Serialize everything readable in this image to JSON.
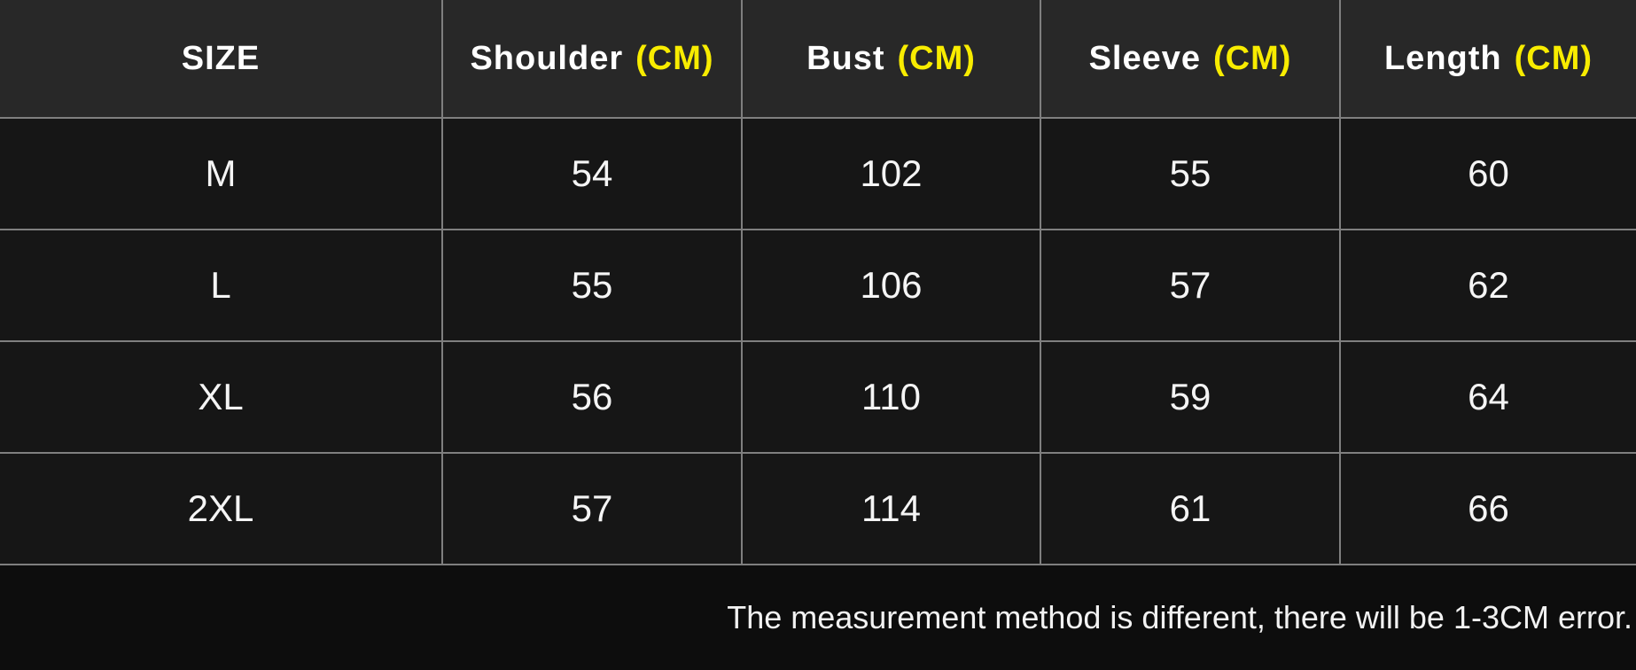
{
  "colors": {
    "header_bg": "#282828",
    "cell_bg": "#161616",
    "footer_bg": "#0d0d0d",
    "grid_line": "#7f7f7f",
    "accent_yellow": "#f8ec00",
    "header_text": "#ffffff",
    "body_text": "#f5f5f5"
  },
  "chart_data": {
    "type": "table",
    "unit_suffix": "(CM)",
    "header": [
      {
        "label": "SIZE",
        "unit": ""
      },
      {
        "label": "Shoulder",
        "unit": "(CM)"
      },
      {
        "label": "Bust",
        "unit": "(CM)"
      },
      {
        "label": "Sleeve",
        "unit": "(CM)"
      },
      {
        "label": "Length",
        "unit": "(CM)"
      }
    ],
    "columns": [
      "SIZE",
      "Shoulder (CM)",
      "Bust (CM)",
      "Sleeve (CM)",
      "Length (CM)"
    ],
    "rows": [
      [
        "M",
        "54",
        "102",
        "55",
        "60"
      ],
      [
        "L",
        "55",
        "106",
        "57",
        "62"
      ],
      [
        "XL",
        "56",
        "110",
        "59",
        "64"
      ],
      [
        "2XL",
        "57",
        "114",
        "61",
        "66"
      ]
    ],
    "layout": {
      "grid": "on",
      "header_row": true,
      "text_align": "center"
    }
  },
  "footer": {
    "note": "The measurement method is different, there will be 1-3CM error."
  }
}
